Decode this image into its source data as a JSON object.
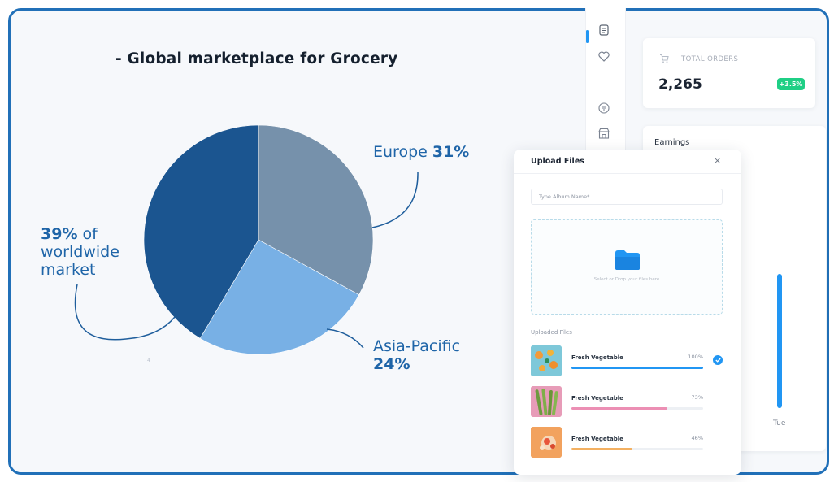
{
  "heading": "-  Global marketplace for Grocery",
  "chart_data": {
    "type": "pie",
    "title": "Global marketplace for Grocery",
    "slices": [
      {
        "label": "worldwide market",
        "value": 39,
        "color": "#1b5590"
      },
      {
        "label": "Europe",
        "value": 31,
        "color": "#7691ab"
      },
      {
        "label": "Asia-Pacific",
        "value": 24,
        "color": "#78b0e5"
      }
    ]
  },
  "labels": {
    "europe_name": "Europe ",
    "europe_pct": "31%",
    "ww_pct": "39%",
    "ww_line1": " of",
    "ww_line2": "worldwide",
    "ww_line3": "market",
    "ap_name": "Asia-Pacific",
    "ap_pct": "24%"
  },
  "stray_mark": "4",
  "dashboard": {
    "sidebar_icons": [
      "document-icon",
      "heart-icon",
      "filter-icon",
      "store-icon"
    ],
    "total_orders": {
      "title": "TOTAL ORDERS",
      "value": "2,265",
      "badge": "+3.5%",
      "badge_color": "#1fcf85"
    },
    "earnings": {
      "title": "Earnings",
      "tick": "Tue",
      "bar_color": "#2196f3",
      "bar_level": 0.75
    }
  },
  "upload": {
    "title": "Upload Files",
    "close": "×",
    "album_placeholder": "Type Album Name*",
    "dropzone_text": "Select or Drop your files here",
    "uploaded_title": "Uploaded Files",
    "files": [
      {
        "name": "Fresh Vegetable",
        "percent": "100%",
        "progress": 1.0,
        "color": "#2196f3",
        "thumb_bg": "#7ec8d9",
        "done": true
      },
      {
        "name": "Fresh Vegetable",
        "percent": "73%",
        "progress": 0.73,
        "color": "#ec8fb4",
        "thumb_bg": "#e79cb8",
        "done": false
      },
      {
        "name": "Fresh Vegetable",
        "percent": "46%",
        "progress": 0.46,
        "color": "#f3b061",
        "thumb_bg": "#f2a25e",
        "done": false
      }
    ]
  }
}
